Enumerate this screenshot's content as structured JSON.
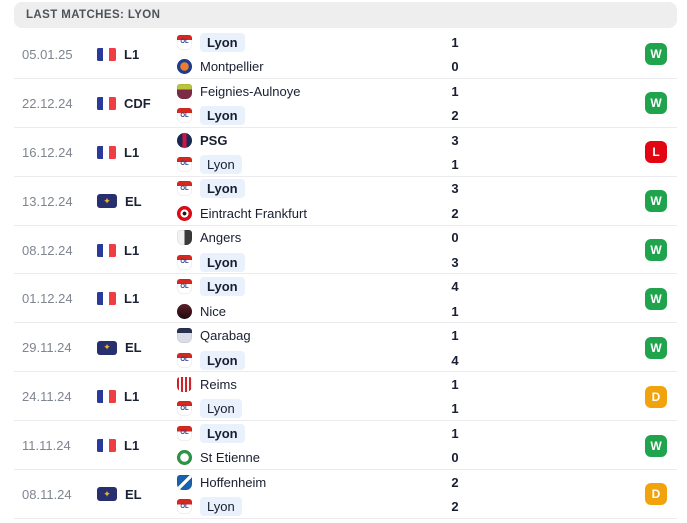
{
  "header": {
    "title": "LAST MATCHES: LYON"
  },
  "result_colors": {
    "W": "#1fa44d",
    "D": "#f1a30d",
    "L": "#e20613"
  },
  "styles": {
    "lyon_highlight": "#e9f1fd",
    "el_badge_bg": "#272f6e",
    "el_badge_glyph_color": "#f0b429",
    "el_badge_glyph_char": "✦",
    "flag_colors": [
      "#2a3a9c",
      "#ffffff",
      "#ee3d43"
    ],
    "separator": "#ebebed",
    "header_bg": "#eeeeef"
  },
  "team_logos": {
    "Lyon": {
      "shape": "shield",
      "style": "band",
      "colors": [
        "#d6281e",
        "#ffffff"
      ],
      "text": "OL",
      "text_color": "#2b3d8f"
    },
    "Montpellier": {
      "shape": "circle",
      "style": "ring",
      "colors": [
        "#1d3d8f",
        "#f07c2a"
      ]
    },
    "Feignies-Aulnoye": {
      "shape": "shield",
      "style": "band",
      "colors": [
        "#b9c53a",
        "#7c2b45"
      ]
    },
    "PSG": {
      "shape": "circle",
      "style": "stripe-v",
      "colors": [
        "#182a54",
        "#d31145"
      ]
    },
    "Eintracht Frankfurt": {
      "shape": "circle",
      "style": "ring2",
      "colors": [
        "#e00814",
        "#ffffff",
        "#1a1a1a"
      ]
    },
    "Angers": {
      "shape": "shield",
      "style": "split-v",
      "colors": [
        "#f2f2f2",
        "#3a3a3a"
      ]
    },
    "Nice": {
      "shape": "circle",
      "style": "grad",
      "colors": [
        "#5c1f2a",
        "#20080c"
      ]
    },
    "Qarabag": {
      "shape": "shield",
      "style": "band",
      "colors": [
        "#2a3150",
        "#d9dde6"
      ]
    },
    "Reims": {
      "shape": "shield",
      "style": "stripes",
      "colors": [
        "#d42027",
        "#ffffff"
      ]
    },
    "St Etienne": {
      "shape": "circle",
      "style": "ring",
      "colors": [
        "#2c9444",
        "#ffffff"
      ]
    },
    "Hoffenheim": {
      "shape": "shield",
      "style": "diag",
      "colors": [
        "#1961ac",
        "#ffffff"
      ]
    }
  },
  "matches": [
    {
      "date": "05.01.25",
      "competition": {
        "code": "L1",
        "icon": "france-flag"
      },
      "result": "W",
      "teams": [
        {
          "name": "Lyon",
          "score": "1",
          "bold": true,
          "highlight": true
        },
        {
          "name": "Montpellier",
          "score": "0",
          "bold": false,
          "highlight": false
        }
      ]
    },
    {
      "date": "22.12.24",
      "competition": {
        "code": "CDF",
        "icon": "france-flag"
      },
      "result": "W",
      "teams": [
        {
          "name": "Feignies-Aulnoye",
          "score": "1",
          "bold": false,
          "highlight": false
        },
        {
          "name": "Lyon",
          "score": "2",
          "bold": true,
          "highlight": true
        }
      ]
    },
    {
      "date": "16.12.24",
      "competition": {
        "code": "L1",
        "icon": "france-flag"
      },
      "result": "L",
      "teams": [
        {
          "name": "PSG",
          "score": "3",
          "bold": true,
          "highlight": false
        },
        {
          "name": "Lyon",
          "score": "1",
          "bold": false,
          "highlight": true
        }
      ]
    },
    {
      "date": "13.12.24",
      "competition": {
        "code": "EL",
        "icon": "europa-league"
      },
      "result": "W",
      "teams": [
        {
          "name": "Lyon",
          "score": "3",
          "bold": true,
          "highlight": true
        },
        {
          "name": "Eintracht Frankfurt",
          "score": "2",
          "bold": false,
          "highlight": false
        }
      ]
    },
    {
      "date": "08.12.24",
      "competition": {
        "code": "L1",
        "icon": "france-flag"
      },
      "result": "W",
      "teams": [
        {
          "name": "Angers",
          "score": "0",
          "bold": false,
          "highlight": false
        },
        {
          "name": "Lyon",
          "score": "3",
          "bold": true,
          "highlight": true
        }
      ]
    },
    {
      "date": "01.12.24",
      "competition": {
        "code": "L1",
        "icon": "france-flag"
      },
      "result": "W",
      "teams": [
        {
          "name": "Lyon",
          "score": "4",
          "bold": true,
          "highlight": true
        },
        {
          "name": "Nice",
          "score": "1",
          "bold": false,
          "highlight": false
        }
      ]
    },
    {
      "date": "29.11.24",
      "competition": {
        "code": "EL",
        "icon": "europa-league"
      },
      "result": "W",
      "teams": [
        {
          "name": "Qarabag",
          "score": "1",
          "bold": false,
          "highlight": false
        },
        {
          "name": "Lyon",
          "score": "4",
          "bold": true,
          "highlight": true
        }
      ]
    },
    {
      "date": "24.11.24",
      "competition": {
        "code": "L1",
        "icon": "france-flag"
      },
      "result": "D",
      "teams": [
        {
          "name": "Reims",
          "score": "1",
          "bold": false,
          "highlight": false
        },
        {
          "name": "Lyon",
          "score": "1",
          "bold": false,
          "highlight": true
        }
      ]
    },
    {
      "date": "11.11.24",
      "competition": {
        "code": "L1",
        "icon": "france-flag"
      },
      "result": "W",
      "teams": [
        {
          "name": "Lyon",
          "score": "1",
          "bold": true,
          "highlight": true
        },
        {
          "name": "St Etienne",
          "score": "0",
          "bold": false,
          "highlight": false
        }
      ]
    },
    {
      "date": "08.11.24",
      "competition": {
        "code": "EL",
        "icon": "europa-league"
      },
      "result": "D",
      "teams": [
        {
          "name": "Hoffenheim",
          "score": "2",
          "bold": false,
          "highlight": false
        },
        {
          "name": "Lyon",
          "score": "2",
          "bold": false,
          "highlight": true
        }
      ]
    }
  ]
}
